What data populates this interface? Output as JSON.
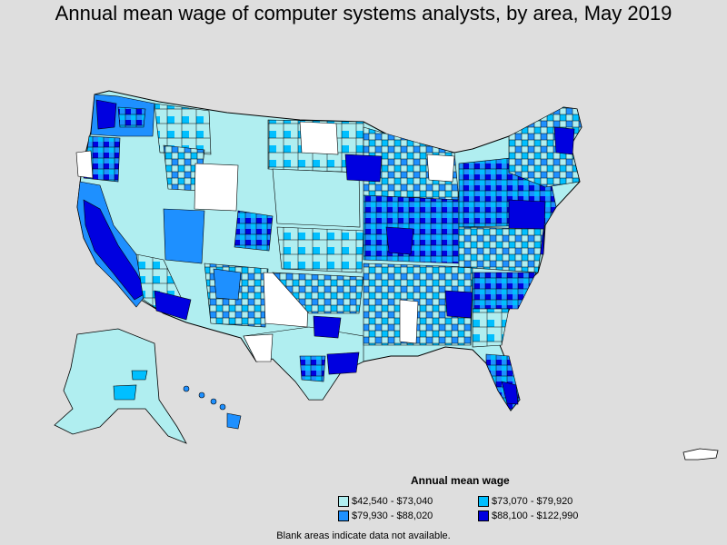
{
  "title": "Annual mean wage of computer systems analysts, by area, May 2019",
  "legend": {
    "title": "Annual mean wage",
    "items": [
      {
        "label": "$42,540 - $73,040",
        "color": "#b0eef0"
      },
      {
        "label": "$73,070 - $79,920",
        "color": "#00bfff"
      },
      {
        "label": "$79,930 - $88,020",
        "color": "#1e90ff"
      },
      {
        "label": "$88,100 - $122,990",
        "color": "#0000e0"
      }
    ]
  },
  "note": "Blank areas indicate data not available.",
  "colors": {
    "background": "#dedede",
    "no_data": "#ffffff",
    "border": "#000000"
  }
}
